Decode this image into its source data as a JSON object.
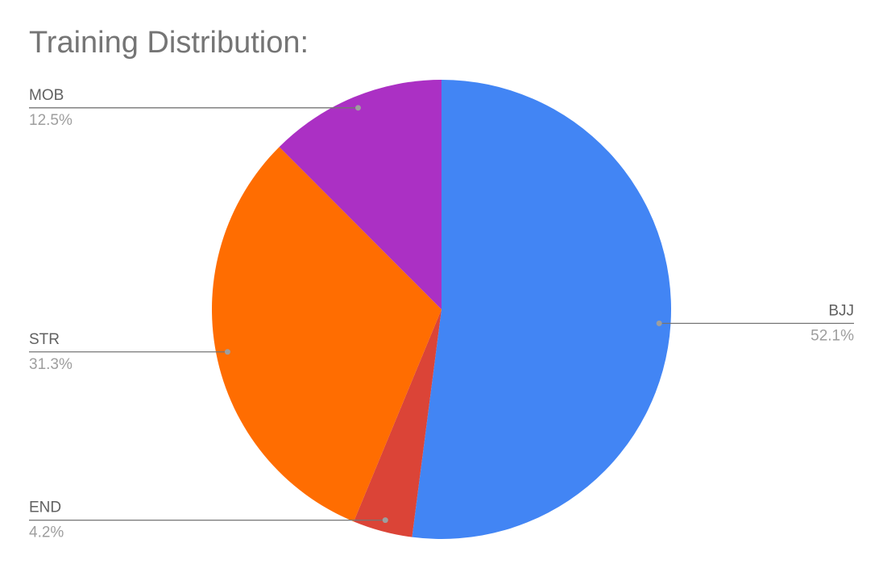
{
  "chart_data": {
    "type": "pie",
    "title": "Training Distribution:",
    "categories": [
      "BJJ",
      "END",
      "STR",
      "MOB"
    ],
    "values": [
      52.1,
      4.2,
      31.3,
      12.5
    ],
    "value_labels": [
      "52.1%",
      "4.2%",
      "31.3%",
      "12.5%"
    ],
    "colors": [
      "#4285f4",
      "#db4437",
      "#ff6d01",
      "#ab30c4"
    ]
  }
}
